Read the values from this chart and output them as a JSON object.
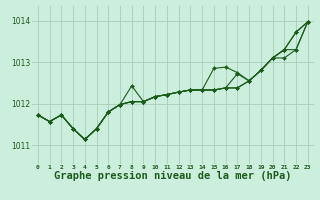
{
  "background_color": "#cceedd",
  "grid_color": "#aaccbb",
  "line_color": "#1a5c1a",
  "marker_color": "#1a5c1a",
  "xlabel": "Graphe pression niveau de la mer (hPa)",
  "xlabel_fontsize": 7.5,
  "ylabel_ticks": [
    1011,
    1012,
    1013,
    1014
  ],
  "xlim": [
    -0.5,
    23.5
  ],
  "ylim": [
    1010.55,
    1014.35
  ],
  "series": {
    "s1": [
      1011.73,
      1011.57,
      1011.73,
      1011.4,
      1011.14,
      1011.4,
      1011.8,
      1011.98,
      1012.05,
      1012.05,
      1012.17,
      1012.22,
      1012.28,
      1012.33,
      1012.33,
      1012.33,
      1012.38,
      1012.38,
      1012.55,
      1012.8,
      1013.1,
      1013.3,
      1013.72,
      1013.97
    ],
    "s2": [
      1011.73,
      1011.57,
      1011.73,
      1011.4,
      1011.14,
      1011.4,
      1011.8,
      1011.98,
      1012.43,
      1012.05,
      1012.17,
      1012.22,
      1012.28,
      1012.33,
      1012.33,
      1012.33,
      1012.38,
      1012.38,
      1012.55,
      1012.8,
      1013.1,
      1013.3,
      1013.3,
      1013.97
    ],
    "s3": [
      1011.73,
      1011.57,
      1011.73,
      1011.4,
      1011.14,
      1011.4,
      1011.8,
      1011.98,
      1012.05,
      1012.05,
      1012.17,
      1012.22,
      1012.28,
      1012.33,
      1012.33,
      1012.85,
      1012.88,
      1012.75,
      1012.55,
      1012.8,
      1013.1,
      1013.1,
      1013.3,
      1013.97
    ],
    "s4": [
      1011.73,
      1011.57,
      1011.73,
      1011.4,
      1011.14,
      1011.4,
      1011.8,
      1011.98,
      1012.05,
      1012.05,
      1012.17,
      1012.22,
      1012.28,
      1012.33,
      1012.33,
      1012.33,
      1012.38,
      1012.72,
      1012.55,
      1012.8,
      1013.1,
      1013.3,
      1013.72,
      1013.97
    ]
  }
}
